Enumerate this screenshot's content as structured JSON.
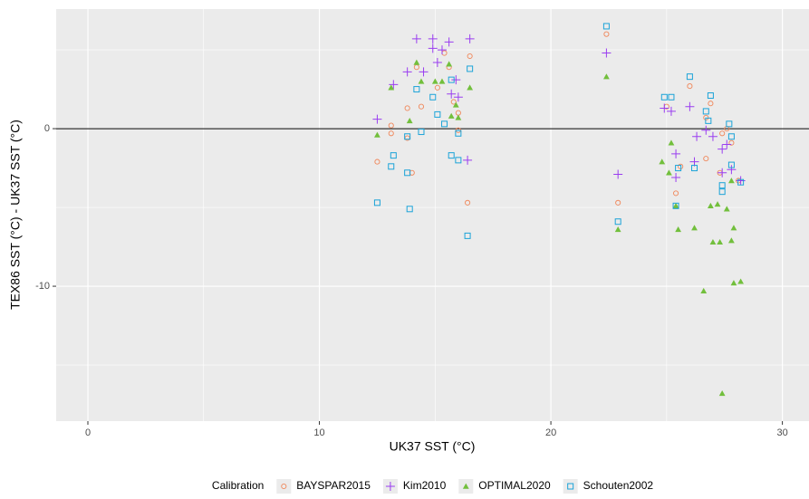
{
  "chart_data": {
    "type": "scatter",
    "x_label": "UK37 SST (°C)",
    "y_label": "TEX86 SST (°C) - UK37 SST (°C)",
    "legend_title": "Calibration",
    "legend": "bottom",
    "grid": true,
    "background": "#ebebeb",
    "hline": 0,
    "xlim": [
      -1.37,
      31.15
    ],
    "xticks": [
      0,
      10,
      20,
      30
    ],
    "x_minor_ticks": [
      5,
      15,
      25
    ],
    "ylim": [
      -18.56,
      7.59
    ],
    "yticks": [
      -10,
      0
    ],
    "y_minor_ticks": [
      -15,
      -5,
      5
    ],
    "series": [
      {
        "name": "BAYSPAR2015",
        "color": "#f0875a",
        "shape": "circle",
        "x": [
          12.5,
          13.1,
          13.1,
          13.8,
          13.8,
          14.0,
          14.2,
          14.4,
          15.1,
          15.4,
          15.6,
          15.8,
          16.0,
          16.5,
          16.4,
          16.0,
          22.4,
          22.9,
          25.0,
          25.4,
          26.0,
          25.6,
          26.7,
          26.9,
          26.7,
          27.4,
          27.6,
          27.8,
          28.1,
          27.3
        ],
        "values": [
          -2.1,
          0.2,
          -0.3,
          -0.6,
          1.3,
          -2.8,
          3.9,
          1.4,
          2.6,
          4.8,
          3.9,
          1.7,
          1.0,
          4.6,
          -4.7,
          -0.1,
          6.0,
          -4.7,
          1.4,
          -4.1,
          2.7,
          -2.4,
          0.7,
          1.6,
          -1.9,
          -0.3,
          0.0,
          -0.9,
          -3.3,
          -2.8
        ]
      },
      {
        "name": "Kim2010",
        "color": "#9a3df0",
        "shape": "plus",
        "x": [
          12.5,
          13.2,
          13.8,
          14.2,
          14.5,
          14.9,
          14.9,
          15.1,
          15.3,
          15.6,
          15.7,
          15.9,
          16.0,
          16.5,
          16.4,
          22.4,
          22.9,
          24.9,
          25.2,
          25.4,
          25.4,
          26.0,
          26.3,
          26.7,
          27.0,
          27.4,
          27.6,
          27.8,
          28.2,
          27.4,
          26.2
        ],
        "values": [
          0.6,
          2.8,
          3.6,
          5.7,
          3.6,
          5.7,
          5.1,
          4.2,
          5.0,
          5.5,
          2.2,
          3.1,
          2.0,
          5.7,
          -2.0,
          4.8,
          -2.9,
          1.3,
          1.1,
          -1.6,
          -3.1,
          1.4,
          -0.5,
          -0.1,
          -0.5,
          -1.3,
          -1.0,
          -2.6,
          -3.3,
          -2.8,
          -2.1
        ]
      },
      {
        "name": "OPTIMAL2020",
        "color": "#72bf3c",
        "shape": "triangle",
        "x": [
          12.5,
          13.1,
          13.9,
          14.2,
          14.4,
          15.0,
          15.3,
          15.6,
          15.7,
          15.9,
          16.5,
          16.0,
          22.4,
          22.9,
          24.8,
          25.1,
          25.2,
          25.5,
          25.4,
          26.2,
          26.6,
          27.0,
          26.9,
          27.3,
          27.4,
          27.6,
          27.8,
          27.9,
          27.9,
          28.2,
          27.8,
          27.2
        ],
        "values": [
          -0.4,
          2.6,
          0.5,
          4.2,
          3.0,
          3.0,
          3.0,
          4.1,
          0.8,
          1.5,
          2.6,
          0.7,
          3.3,
          -6.4,
          -2.1,
          -2.8,
          -0.9,
          -6.4,
          -4.9,
          -6.3,
          -10.3,
          -7.2,
          -4.9,
          -7.2,
          -16.8,
          -5.1,
          -7.1,
          -6.3,
          -9.8,
          -9.7,
          -3.3,
          -4.8
        ]
      },
      {
        "name": "Schouten2002",
        "color": "#1ba3d8",
        "shape": "square",
        "x": [
          12.5,
          13.2,
          13.1,
          13.8,
          13.9,
          13.8,
          14.4,
          14.2,
          14.9,
          15.1,
          15.4,
          15.7,
          15.7,
          16.0,
          16.4,
          16.5,
          16.0,
          22.4,
          22.9,
          24.9,
          25.2,
          25.5,
          25.4,
          26.0,
          26.2,
          26.7,
          26.9,
          26.8,
          27.4,
          27.4,
          27.7,
          27.8,
          28.2,
          27.8
        ],
        "values": [
          -4.7,
          -1.7,
          -2.4,
          -2.8,
          -5.1,
          -0.5,
          -0.2,
          2.5,
          2.0,
          0.9,
          0.3,
          3.1,
          -1.7,
          -2.0,
          -6.8,
          3.8,
          -0.3,
          6.5,
          -5.9,
          2.0,
          2.0,
          -2.5,
          -4.9,
          3.3,
          -2.5,
          1.1,
          2.1,
          0.5,
          -3.6,
          -4.0,
          0.3,
          -2.3,
          -3.4,
          -0.5
        ]
      }
    ]
  }
}
